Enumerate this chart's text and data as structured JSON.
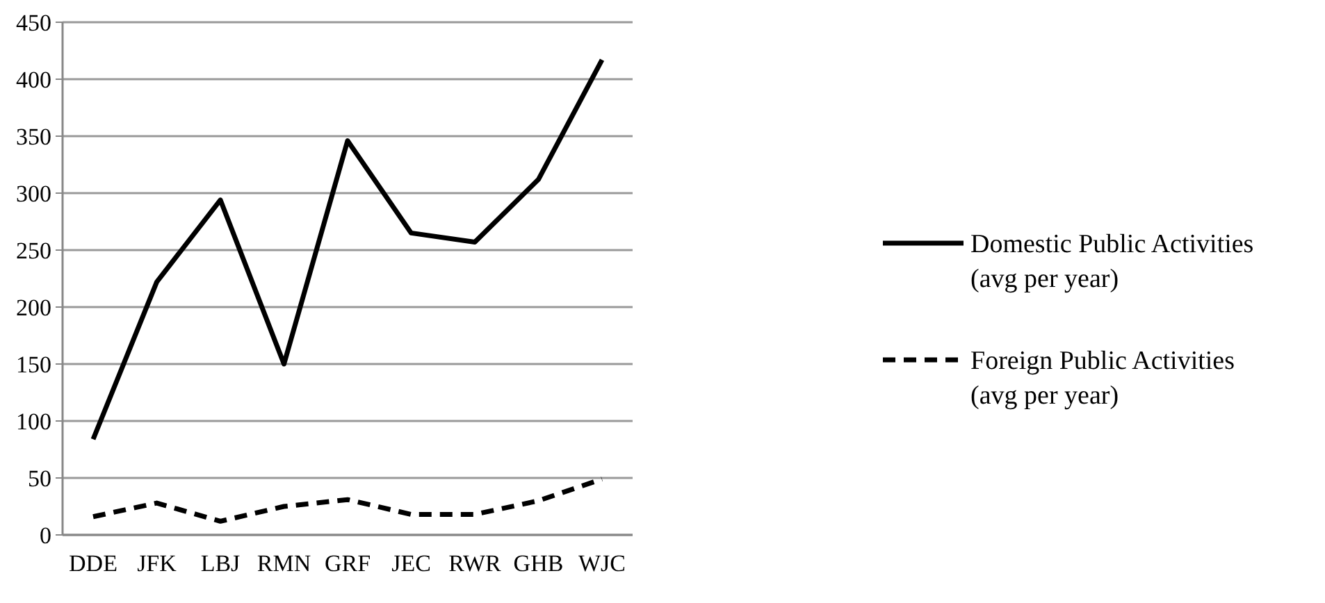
{
  "chart_data": {
    "type": "line",
    "categories": [
      "DDE",
      "JFK",
      "LBJ",
      "RMN",
      "GRF",
      "JEC",
      "RWR",
      "GHB",
      "WJC"
    ],
    "series": [
      {
        "name": "Domestic Public Activities (avg per year)",
        "color": "#000000",
        "line_style": "solid",
        "values": [
          84,
          222,
          294,
          150,
          346,
          265,
          257,
          312,
          417
        ]
      },
      {
        "name": "Foreign Public Activities (avg per year)",
        "color": "#000000",
        "line_style": "dashed",
        "values": [
          16,
          28,
          12,
          25,
          31,
          18,
          18,
          30,
          49
        ]
      }
    ],
    "ylim": [
      0,
      450
    ],
    "yticks": [
      0,
      50,
      100,
      150,
      200,
      250,
      300,
      350,
      400,
      450
    ],
    "grid": "y",
    "legend": "right",
    "marker": "none"
  }
}
